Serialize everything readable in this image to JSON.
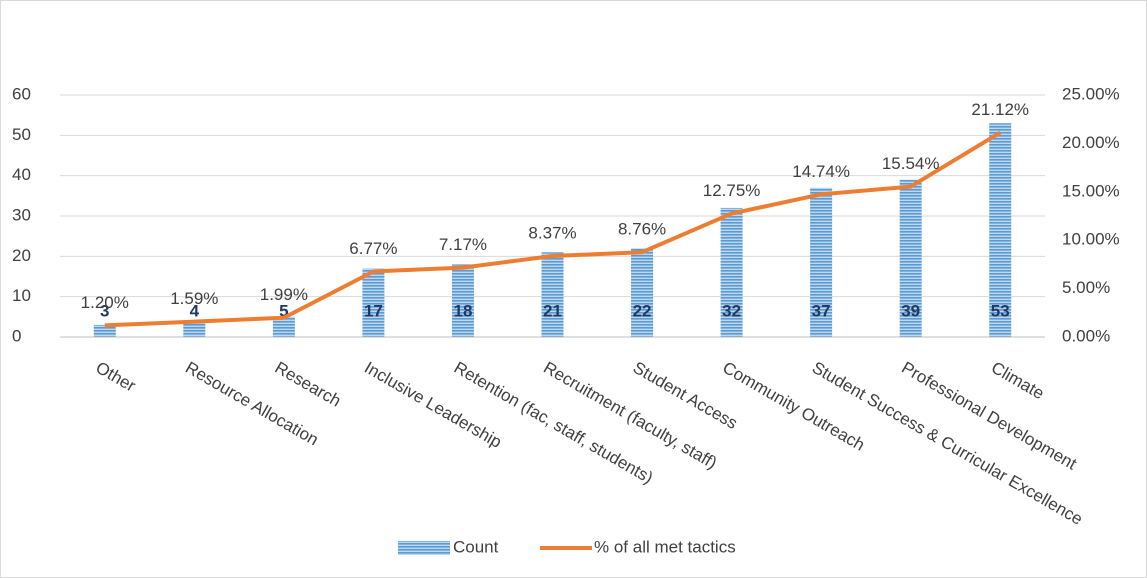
{
  "chart_data": {
    "type": "bar_line",
    "categories": [
      "Other",
      "Resource Allocation",
      "Research",
      "Inclusive Leadership",
      "Retention (fac, staff, students)",
      "Recruitment (faculty, staff)",
      "Student Access",
      "Community Outreach",
      "Student Success & Curricular Excellence",
      "Professional Development",
      "Climate"
    ],
    "series": [
      {
        "name": "Count",
        "color": "#5b9bd5",
        "values": [
          3,
          4,
          5,
          17,
          18,
          21,
          22,
          32,
          37,
          39,
          53
        ]
      },
      {
        "name": "% of all met tactics",
        "color": "#ed7d31",
        "axis": "y2",
        "values": [
          1.2,
          1.59,
          1.99,
          6.77,
          7.17,
          8.37,
          8.76,
          12.75,
          14.74,
          15.54,
          21.12
        ],
        "value_labels": [
          "1.20%",
          "1.59%",
          "1.99%",
          "6.77%",
          "7.17%",
          "8.37%",
          "8.76%",
          "12.75%",
          "14.74%",
          "15.54%",
          "21.12%"
        ]
      }
    ],
    "ylim": [
      0,
      60
    ],
    "yticks": [
      0,
      10,
      20,
      30,
      40,
      50,
      60
    ],
    "y2lim": [
      0,
      25
    ],
    "y2ticks": [
      {
        "value": 0,
        "label": "0.00%"
      },
      {
        "value": 5,
        "label": "5.00%"
      },
      {
        "value": 10,
        "label": "10.00%"
      },
      {
        "value": 15,
        "label": "15.00%"
      },
      {
        "value": 20,
        "label": "20.00%"
      },
      {
        "value": 25,
        "label": "25.00%"
      }
    ],
    "grid": true,
    "legend": "bottom"
  }
}
